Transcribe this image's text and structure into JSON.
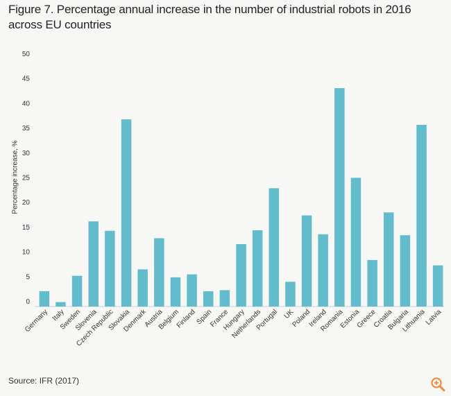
{
  "page": {
    "title": "Figure 7. Percentage annual increase in the number of industrial robots in 2016 across EU countries",
    "source": "Source: IFR (2017)",
    "zoom_icon": "zoom-in-icon"
  },
  "colors": {
    "bar": "#62bccc",
    "text": "#333333",
    "background": "#f7f7f5",
    "zoom": "#f08a3e"
  },
  "chart_data": {
    "type": "bar",
    "title": "Figure 7. Percentage annual increase in the number of industrial robots in 2016 across EU countries",
    "xlabel": "",
    "ylabel": "Percentage increase, %",
    "ylim": [
      0,
      50
    ],
    "yticks": [
      0,
      5,
      10,
      15,
      20,
      25,
      30,
      35,
      40,
      45,
      50
    ],
    "grid": false,
    "categories": [
      "Germany",
      "Italy",
      "Sweden",
      "Slovenia",
      "Czech Republic",
      "Slovakia",
      "Denmark",
      "Austria",
      "Belgium",
      "Finland",
      "Spain",
      "France",
      "Hungary",
      "Netherlands",
      "Portugal",
      "UK",
      "Poland",
      "Ireland",
      "Romania",
      "Estonia",
      "Greece",
      "Croatia",
      "Bulgaria",
      "Lithuania",
      "Latvia"
    ],
    "values": [
      3.1,
      0.9,
      6.2,
      17.2,
      15.3,
      37.8,
      7.5,
      13.8,
      5.9,
      6.5,
      3.1,
      3.3,
      12.6,
      15.4,
      23.9,
      5.0,
      18.4,
      14.6,
      44.1,
      26.0,
      9.4,
      19.0,
      14.4,
      36.7,
      8.3
    ]
  }
}
